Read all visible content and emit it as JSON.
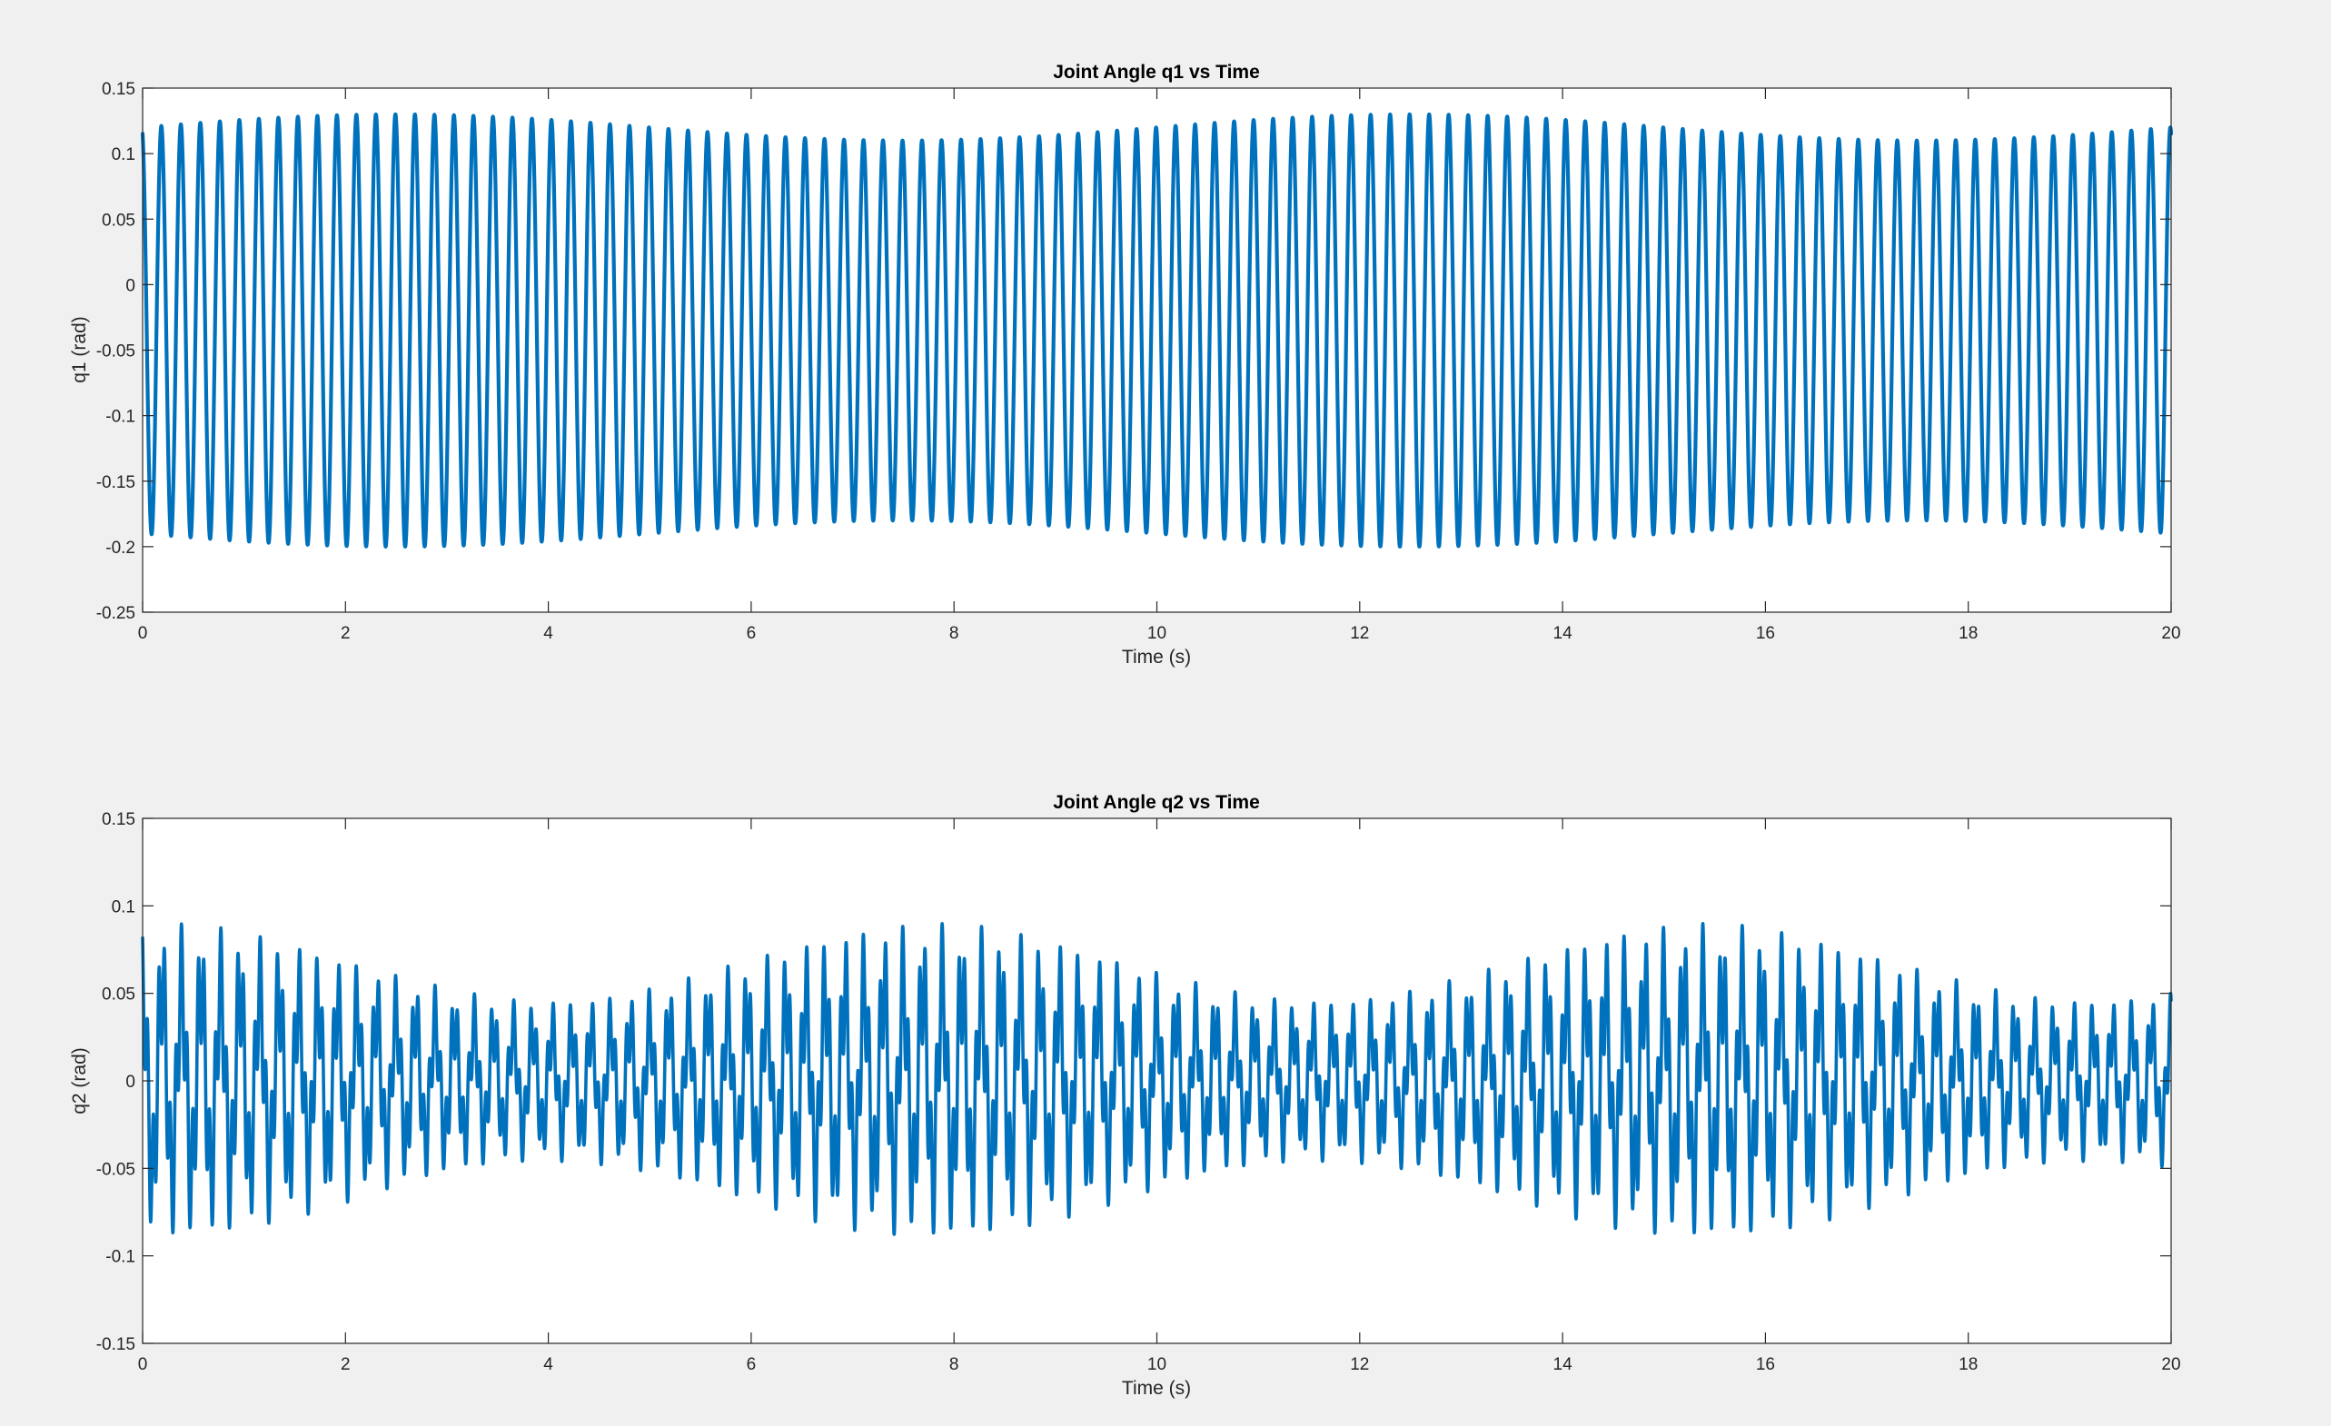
{
  "figure": {
    "background": "#f0f0f0",
    "line_color": "#0072bd"
  },
  "chart_data": [
    {
      "type": "line",
      "title": "Joint Angle q1 vs Time",
      "xlabel": "Time (s)",
      "ylabel": "q1 (rad)",
      "xlim": [
        0,
        20
      ],
      "ylim": [
        -0.25,
        0.15
      ],
      "xticks": [
        0,
        2,
        4,
        6,
        8,
        10,
        12,
        14,
        16,
        18,
        20
      ],
      "yticks": [
        0.15,
        0.1,
        0.05,
        0,
        -0.05,
        -0.1,
        -0.15,
        -0.2,
        -0.25
      ],
      "xtick_labels": [
        "0",
        "2",
        "4",
        "6",
        "8",
        "10",
        "12",
        "14",
        "16",
        "18",
        "20"
      ],
      "ytick_labels": [
        "0.15",
        "0.1",
        "0.05",
        "0",
        "-0.05",
        "-0.1",
        "-0.15",
        "-0.2",
        "-0.25"
      ],
      "grid": false,
      "series": [
        {
          "signal": "oscillation",
          "color": "#0072bd",
          "frequency_hz": 5.2,
          "center": -0.035,
          "amplitude": 0.155,
          "amplitude_variation": 0.01,
          "variation_frequency_hz": 0.1,
          "peak_max": 0.148,
          "trough_min": -0.2
        }
      ]
    },
    {
      "type": "line",
      "title": "Joint Angle q2 vs Time",
      "xlabel": "Time (s)",
      "ylabel": "q2 (rad)",
      "xlim": [
        0,
        20
      ],
      "ylim": [
        -0.15,
        0.15
      ],
      "xticks": [
        0,
        2,
        4,
        6,
        8,
        10,
        12,
        14,
        16,
        18,
        20
      ],
      "yticks": [
        0.15,
        0.1,
        0.05,
        0,
        -0.05,
        -0.1,
        -0.15
      ],
      "xtick_labels": [
        "0",
        "2",
        "4",
        "6",
        "8",
        "10",
        "12",
        "14",
        "16",
        "18",
        "20"
      ],
      "ytick_labels": [
        "0.15",
        "0.1",
        "0.05",
        "0",
        "-0.05",
        "-0.1",
        "-0.15"
      ],
      "grid": false,
      "series": [
        {
          "signal": "beating-oscillation",
          "color": "#0072bd",
          "frequency_hz": 5.2,
          "secondary_frequency_hz": 18,
          "center": 0.0,
          "amplitude_mean": 0.068,
          "amplitude_variation": 0.022,
          "envelope_period_s": 7.6,
          "envelope_peak_times_s": [
            0.2,
            7.2,
            14.6
          ],
          "envelope_trough_times_s": [
            3.5,
            11.0,
            18.5
          ],
          "peak_max": 0.1,
          "trough_min": -0.108
        }
      ]
    }
  ]
}
